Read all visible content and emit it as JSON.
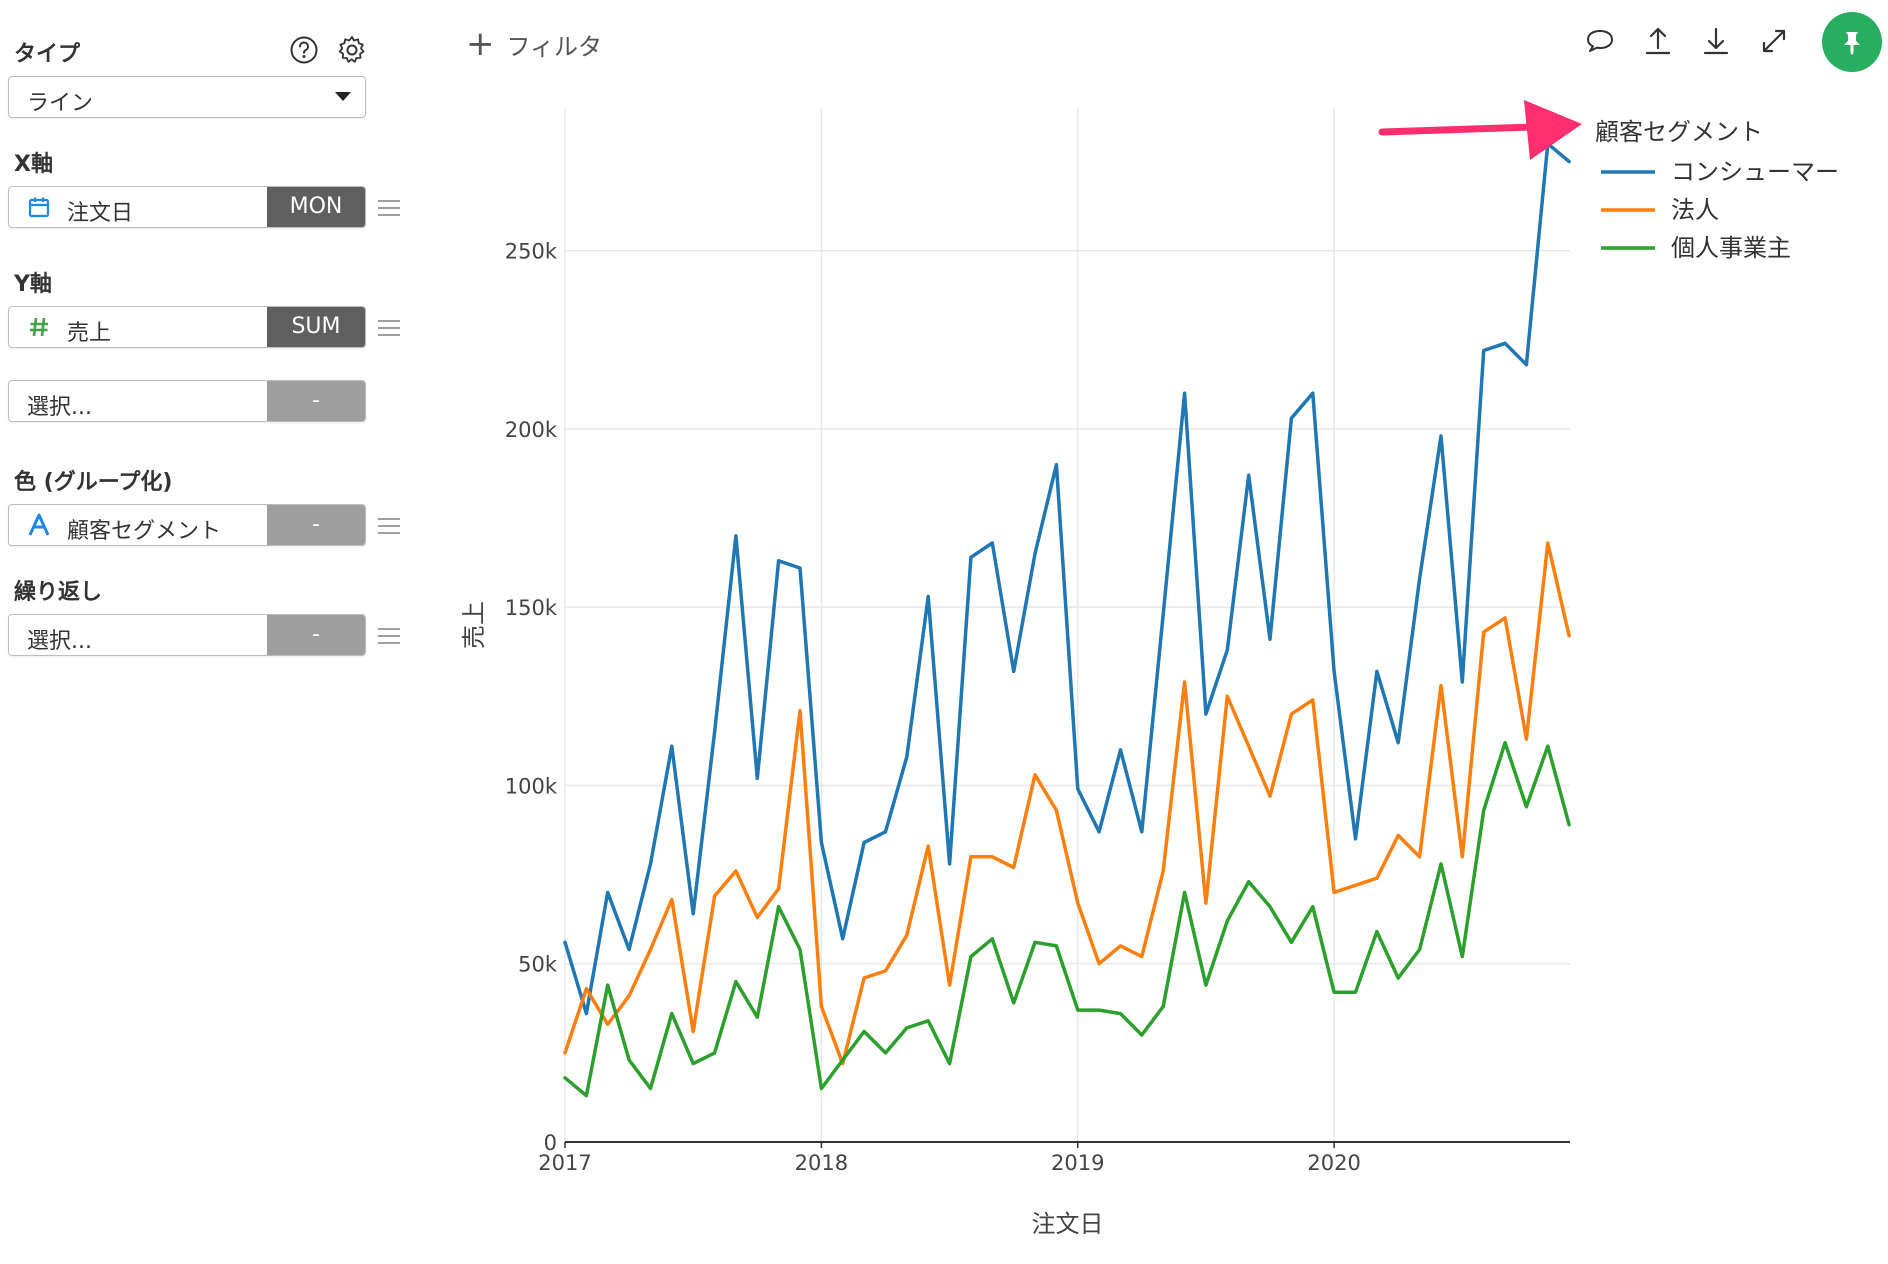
{
  "sidebar": {
    "type_label": "タイプ",
    "type_value": "ライン",
    "x_label": "X軸",
    "x_field": "注文日",
    "x_agg": "MON",
    "y_label": "Y軸",
    "y_field": "売上",
    "y_agg": "SUM",
    "y2_field": "選択...",
    "y2_agg": "-",
    "color_label": "色 (グループ化)",
    "color_field": "顧客セグメント",
    "color_agg": "-",
    "repeat_label": "繰り返し",
    "repeat_field": "選択...",
    "repeat_agg": "-"
  },
  "toolbar": {
    "filter_label": "フィルタ",
    "icons": [
      "comment-icon",
      "upload-icon",
      "download-icon",
      "expand-icon",
      "pin-icon"
    ],
    "pin_color": "#27ae60"
  },
  "annotation": {
    "arrow_color": "#ff2e6e"
  },
  "chart_data": {
    "type": "line",
    "xlabel": "注文日",
    "ylabel": "売上",
    "xlim": [
      2017,
      2020.92
    ],
    "ylim": [
      0,
      290000
    ],
    "x_ticks": [
      {
        "value": 2017,
        "label": "2017"
      },
      {
        "value": 2018,
        "label": "2018"
      },
      {
        "value": 2019,
        "label": "2019"
      },
      {
        "value": 2020,
        "label": "2020"
      }
    ],
    "y_ticks": [
      {
        "value": 0,
        "label": "0"
      },
      {
        "value": 50000,
        "label": "50k"
      },
      {
        "value": 100000,
        "label": "100k"
      },
      {
        "value": 150000,
        "label": "150k"
      },
      {
        "value": 200000,
        "label": "200k"
      },
      {
        "value": 250000,
        "label": "250k"
      }
    ],
    "grid": true,
    "legend": {
      "title": "顧客セグメント",
      "position": "top-right"
    },
    "x": [
      "2017-01",
      "2017-02",
      "2017-03",
      "2017-04",
      "2017-05",
      "2017-06",
      "2017-07",
      "2017-08",
      "2017-09",
      "2017-10",
      "2017-11",
      "2017-12",
      "2018-01",
      "2018-02",
      "2018-03",
      "2018-04",
      "2018-05",
      "2018-06",
      "2018-07",
      "2018-08",
      "2018-09",
      "2018-10",
      "2018-11",
      "2018-12",
      "2019-01",
      "2019-02",
      "2019-03",
      "2019-04",
      "2019-05",
      "2019-06",
      "2019-07",
      "2019-08",
      "2019-09",
      "2019-10",
      "2019-11",
      "2019-12",
      "2020-01",
      "2020-02",
      "2020-03",
      "2020-04",
      "2020-05",
      "2020-06",
      "2020-07",
      "2020-08",
      "2020-09",
      "2020-10",
      "2020-11",
      "2020-12"
    ],
    "series": [
      {
        "name": "コンシューマー",
        "color": "#1f77b4",
        "values": [
          56000,
          36000,
          70000,
          54000,
          78000,
          111000,
          64000,
          115000,
          170000,
          102000,
          163000,
          161000,
          84000,
          57000,
          84000,
          87000,
          108000,
          153000,
          78000,
          164000,
          168000,
          132000,
          165000,
          190000,
          99000,
          87000,
          110000,
          87000,
          148000,
          210000,
          120000,
          138000,
          187000,
          141000,
          203000,
          210000,
          132000,
          85000,
          132000,
          112000,
          158000,
          198000,
          129000,
          222000,
          224000,
          218000,
          280000,
          275000
        ]
      },
      {
        "name": "法人",
        "color": "#ff7f0e",
        "values": [
          25000,
          43000,
          33000,
          41000,
          54000,
          68000,
          31000,
          69000,
          76000,
          63000,
          71000,
          121000,
          38000,
          22000,
          46000,
          48000,
          58000,
          83000,
          44000,
          80000,
          80000,
          77000,
          103000,
          93000,
          67000,
          50000,
          55000,
          52000,
          76000,
          129000,
          67000,
          125000,
          111000,
          97000,
          120000,
          124000,
          70000,
          72000,
          74000,
          86000,
          80000,
          128000,
          80000,
          143000,
          147000,
          113000,
          168000,
          142000
        ]
      },
      {
        "name": "個人事業主",
        "color": "#2ca02c",
        "values": [
          18000,
          13000,
          44000,
          23000,
          15000,
          36000,
          22000,
          25000,
          45000,
          35000,
          66000,
          54000,
          15000,
          23000,
          31000,
          25000,
          32000,
          34000,
          22000,
          52000,
          57000,
          39000,
          56000,
          55000,
          37000,
          37000,
          36000,
          30000,
          38000,
          70000,
          44000,
          62000,
          73000,
          66000,
          56000,
          66000,
          42000,
          42000,
          59000,
          46000,
          54000,
          78000,
          52000,
          93000,
          112000,
          94000,
          111000,
          89000
        ]
      }
    ]
  }
}
